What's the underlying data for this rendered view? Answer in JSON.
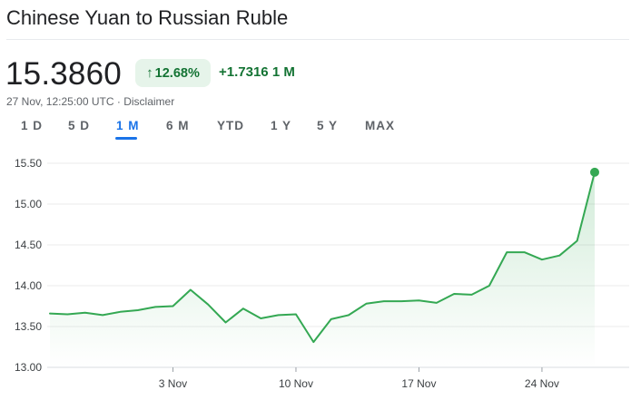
{
  "header": {
    "title": "Chinese Yuan to Russian Ruble"
  },
  "quote": {
    "price": "15.3860",
    "change_pct": "12.68%",
    "change_abs": "+1.7316",
    "change_period": "1 M",
    "timestamp": "27 Nov, 12:25:00 UTC",
    "separator": "·",
    "disclaimer": "Disclaimer"
  },
  "range_tabs": [
    {
      "label": "1 D",
      "active": false
    },
    {
      "label": "5 D",
      "active": false
    },
    {
      "label": "1 M",
      "active": true
    },
    {
      "label": "6 M",
      "active": false
    },
    {
      "label": "YTD",
      "active": false
    },
    {
      "label": "1 Y",
      "active": false
    },
    {
      "label": "5 Y",
      "active": false
    },
    {
      "label": "MAX",
      "active": false
    }
  ],
  "colors": {
    "accent": "#1a73e8",
    "positive": "#137333",
    "line": "#34a853",
    "positive_bg": "#e6f4ea"
  },
  "icons": {
    "change_arrow": "arrow-up-icon"
  },
  "chart_data": {
    "type": "area",
    "y_ticks": [
      "15.50",
      "15.00",
      "14.50",
      "14.00",
      "13.50",
      "13.00"
    ],
    "ylim": [
      13.0,
      15.5
    ],
    "x_ticks": [
      "3 Nov",
      "10 Nov",
      "17 Nov",
      "24 Nov"
    ],
    "x_tick_index": [
      7,
      14,
      21,
      28
    ],
    "series": [
      {
        "values": [
          13.66,
          13.65,
          13.67,
          13.64,
          13.68,
          13.7,
          13.74,
          13.75,
          13.95,
          13.77,
          13.55,
          13.72,
          13.6,
          13.64,
          13.65,
          13.31,
          13.59,
          13.64,
          13.78,
          13.81,
          13.81,
          13.82,
          13.79,
          13.9,
          13.89,
          14.0,
          14.41,
          14.41,
          14.32,
          14.37,
          14.55,
          15.39
        ]
      }
    ],
    "grid": true,
    "legend": "none",
    "end_marker": true
  }
}
